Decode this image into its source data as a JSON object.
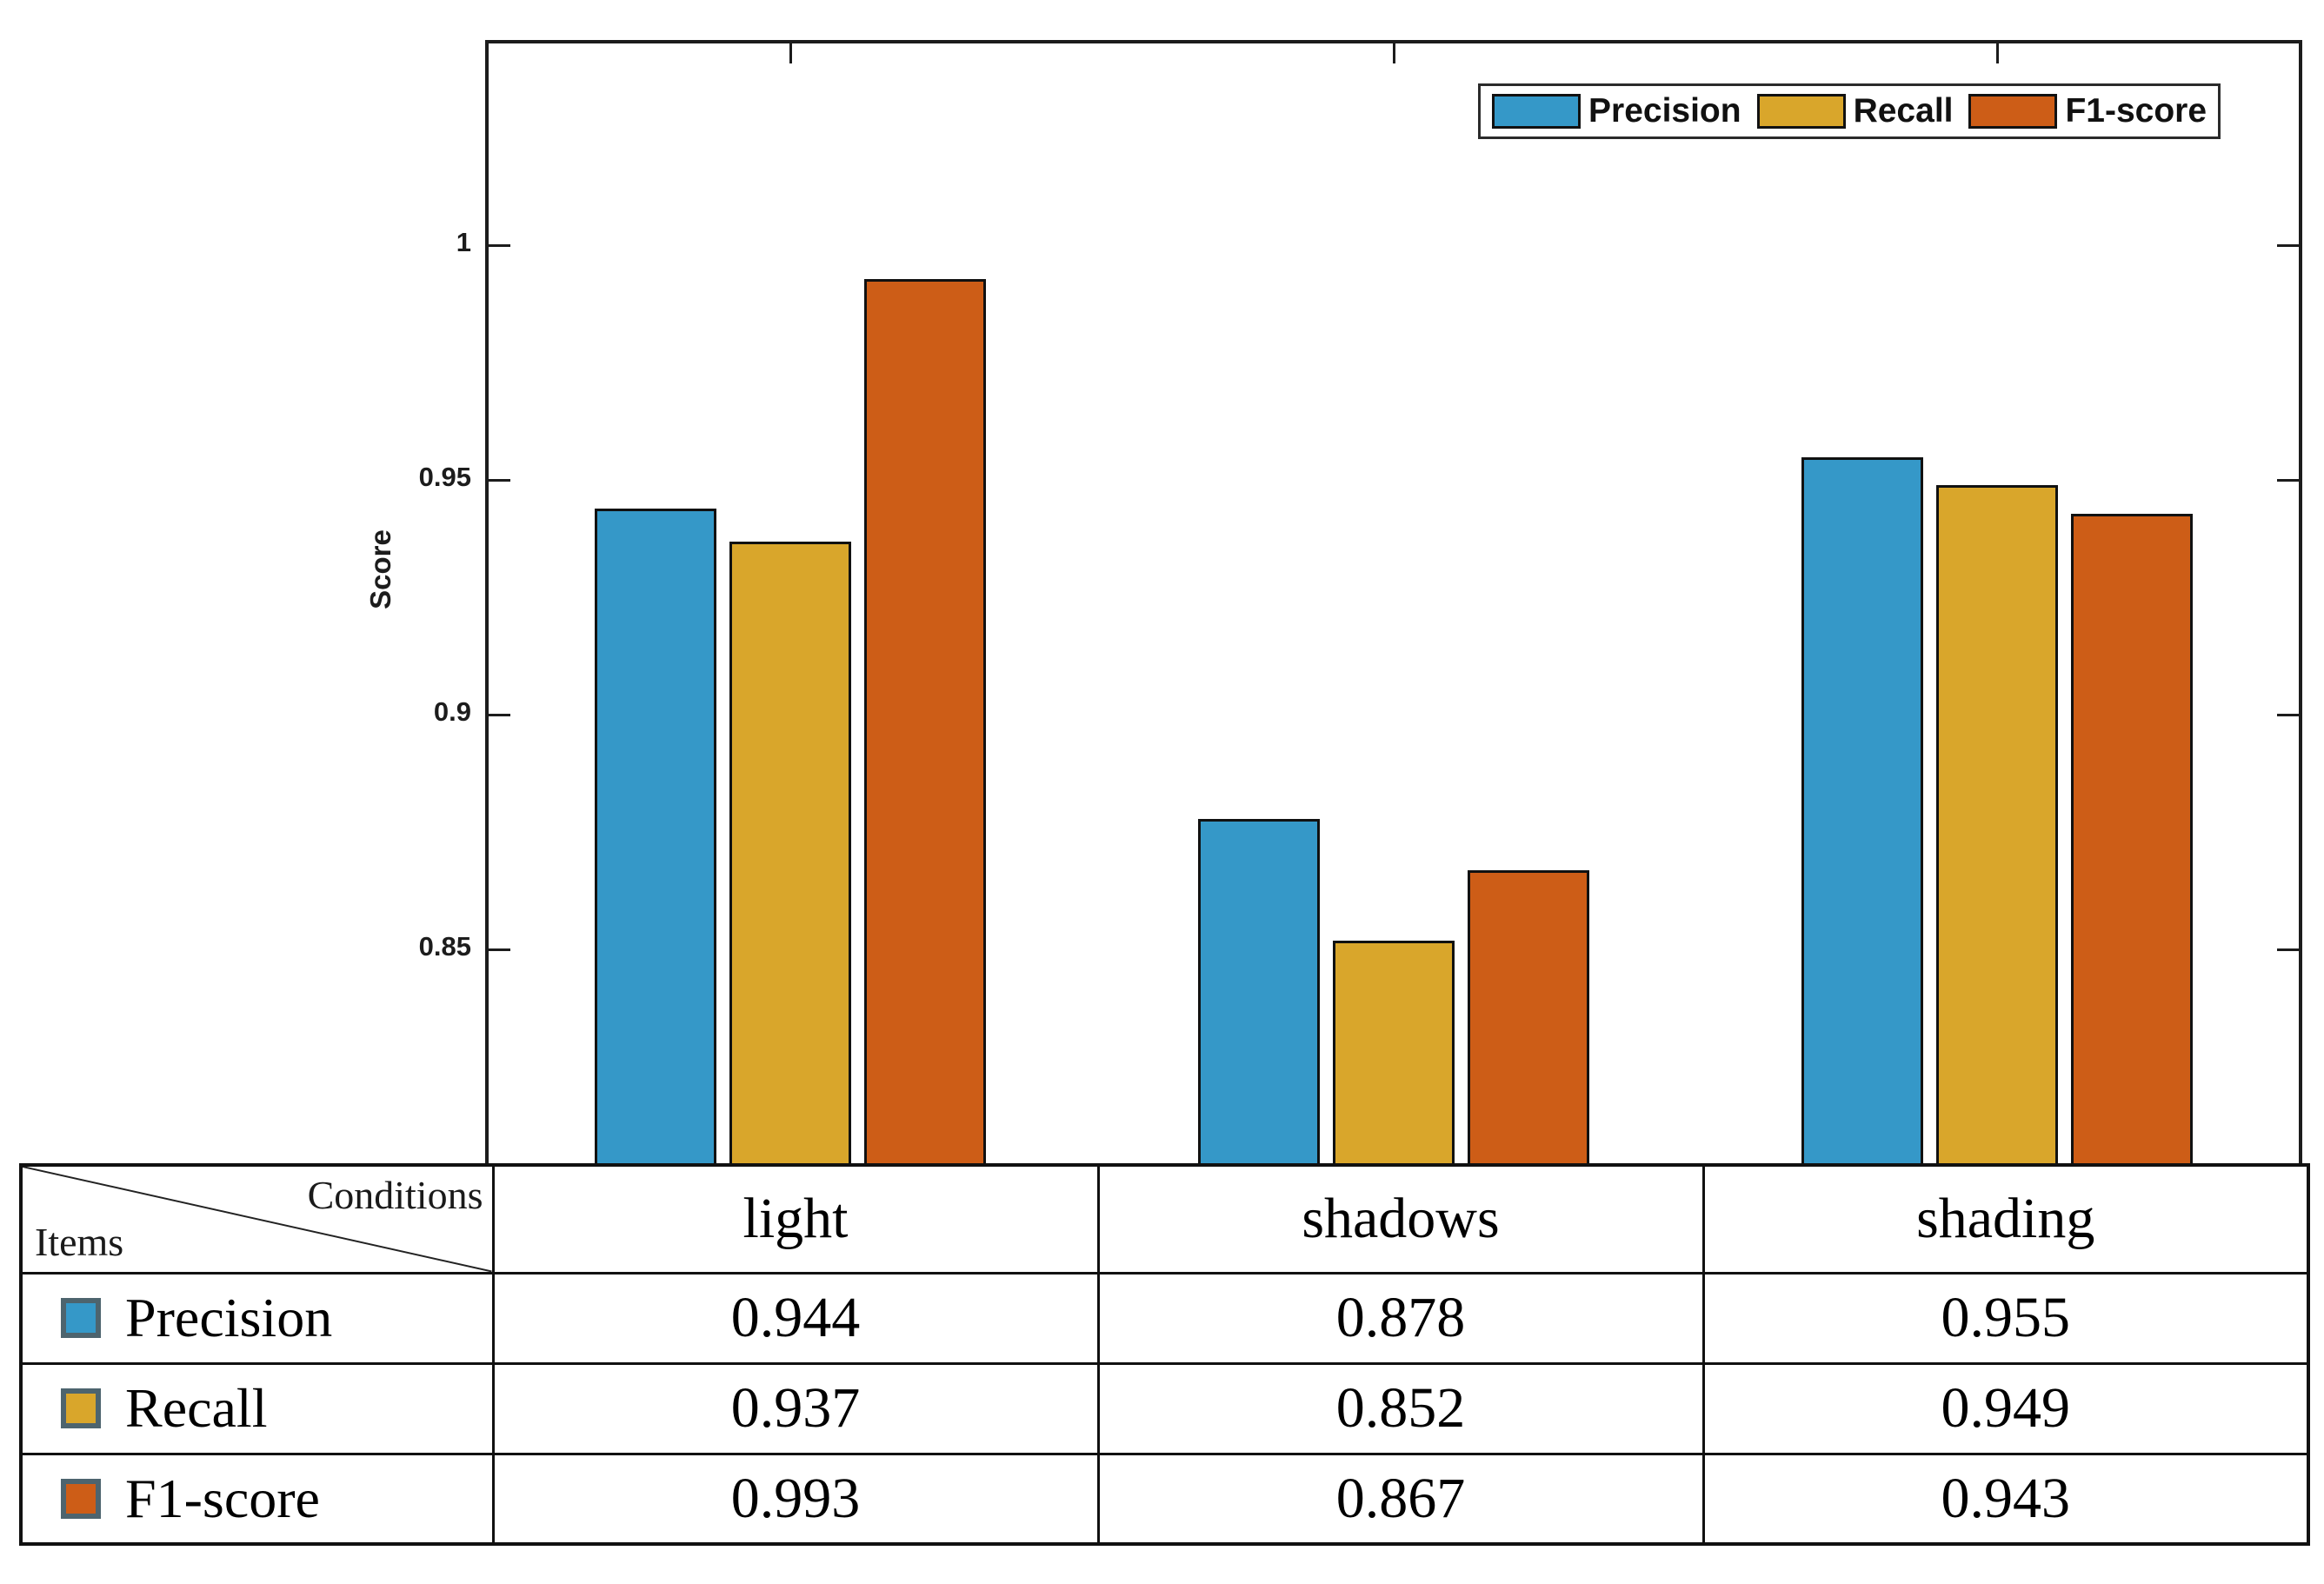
{
  "figure": {
    "background": "#ffffff",
    "axis_color": "#1c1c1c"
  },
  "chart_data": {
    "type": "bar",
    "title": "",
    "categories": [
      "light",
      "shadows",
      "shading"
    ],
    "series": [
      {
        "name": "Precision",
        "color": "#3598c8",
        "values": [
          0.944,
          0.878,
          0.955
        ]
      },
      {
        "name": "Recall",
        "color": "#d9a62b",
        "values": [
          0.937,
          0.852,
          0.949
        ]
      },
      {
        "name": "F1-score",
        "color": "#cd5d17",
        "values": [
          0.993,
          0.867,
          0.943
        ]
      }
    ],
    "xlabel": "",
    "ylabel": "Score",
    "ylim": [
      0.8046,
      1.0431
    ],
    "yticks": [
      0.85,
      0.9,
      0.95,
      1
    ],
    "ytick_labels": [
      "0.85",
      "0.9",
      "0.95",
      "1"
    ],
    "legend": {
      "position": "top-right",
      "entries": [
        "Precision",
        "Recall",
        "F1-score"
      ]
    },
    "grid": false,
    "bar_edge_color": "#111111"
  },
  "table": {
    "corner": {
      "top_right_label": "Conditions",
      "bottom_left_label": "Items"
    },
    "columns": [
      "light",
      "shadows",
      "shading"
    ],
    "rows": [
      {
        "label": "Precision",
        "swatch_color": "#3598c8",
        "values": [
          "0.944",
          "0.878",
          "0.955"
        ]
      },
      {
        "label": "Recall",
        "swatch_color": "#d9a62b",
        "values": [
          "0.937",
          "0.852",
          "0.949"
        ]
      },
      {
        "label": "F1-score",
        "swatch_color": "#cd5d17",
        "values": [
          "0.993",
          "0.867",
          "0.943"
        ]
      }
    ]
  }
}
